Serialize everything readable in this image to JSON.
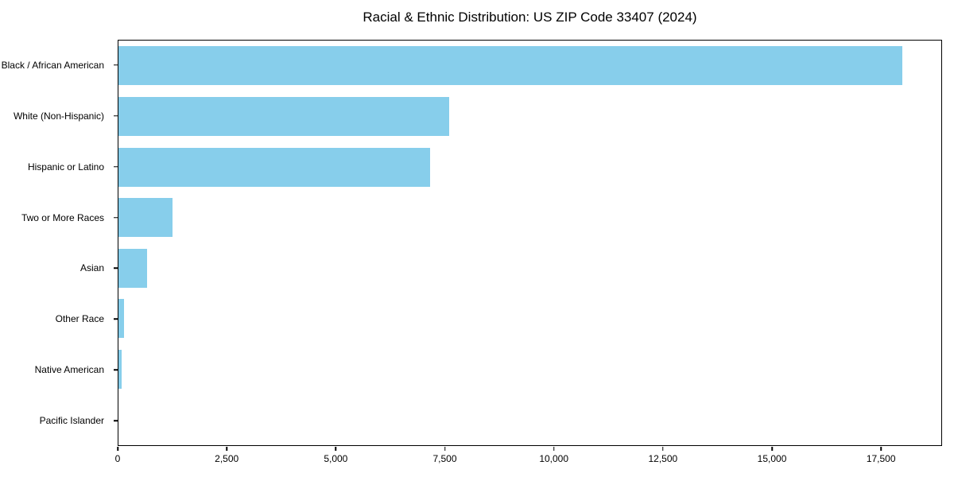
{
  "chart_data": {
    "type": "bar",
    "orientation": "horizontal",
    "title": "Racial & Ethnic Distribution: US ZIP Code 33407 (2024)",
    "categories": [
      "Black / African American",
      "White (Non-Hispanic)",
      "Hispanic or Latino",
      "Two or More Races",
      "Asian",
      "Other Race",
      "Native American",
      "Pacific Islander"
    ],
    "values": [
      18000,
      7600,
      7150,
      1250,
      650,
      125,
      70,
      0
    ],
    "xlabel": "",
    "ylabel": "",
    "xlim": [
      0,
      18900
    ],
    "x_ticks": [
      0,
      2500,
      5000,
      7500,
      10000,
      12500,
      15000,
      17500
    ],
    "x_tick_labels": [
      "0",
      "2,500",
      "5,000",
      "7,500",
      "10,000",
      "12,500",
      "15,000",
      "17,500"
    ],
    "bar_color": "#87CEEB",
    "grid": false,
    "legend": null
  }
}
